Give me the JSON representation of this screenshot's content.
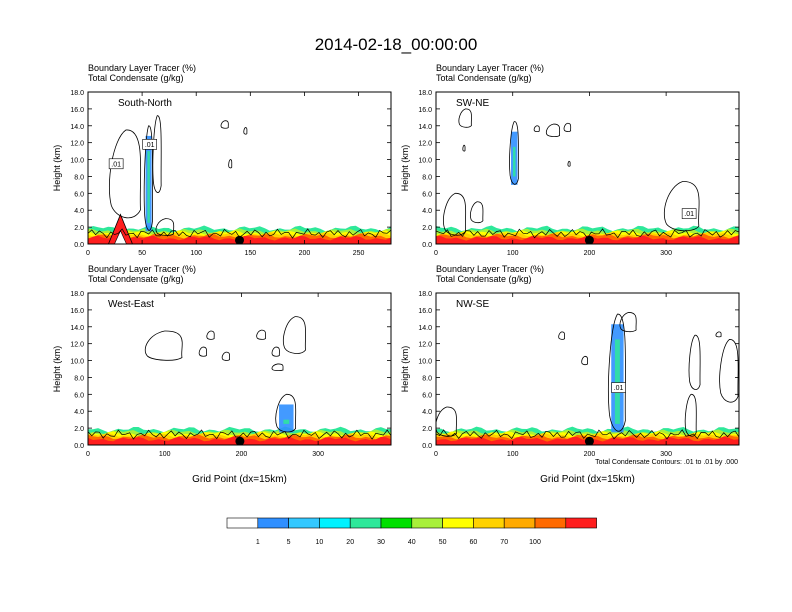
{
  "title": "2014-02-18_00:00:00",
  "colors": {
    "fill_levels": [
      "#ffffff",
      "#2f8fff",
      "#33c8ff",
      "#00f2ff",
      "#2ee89a",
      "#00e000",
      "#a8f03a",
      "#ffff00",
      "#ffd200",
      "#ffaa00",
      "#ff6a00",
      "#ff1e1e"
    ],
    "contour": "#000000"
  },
  "colorbar": {
    "labels": [
      "1",
      "5",
      "10",
      "20",
      "30",
      "40",
      "50",
      "60",
      "70",
      "100"
    ],
    "colors": [
      "#ffffff",
      "#2f8fff",
      "#33c8ff",
      "#00f2ff",
      "#2ee89a",
      "#00e000",
      "#a8f03a",
      "#ffff00",
      "#ffd200",
      "#ffaa00",
      "#ff6a00",
      "#ff1e1e"
    ]
  },
  "contour_note": "Total Condensate Contours: .01 to .01 by .000",
  "chart_data": [
    {
      "type": "heatmap",
      "panel_title": "South-North",
      "field_line1": "Boundary Layer Tracer   (%)",
      "field_line2": "Total Condensate   (g/kg)",
      "ylabel": "Height (km)",
      "xlabel": "",
      "xlim": [
        0,
        280
      ],
      "ylim": [
        0,
        18
      ],
      "xticks": [
        0,
        50,
        100,
        150,
        200,
        250
      ],
      "xtick_labels": [
        "0",
        "50",
        "100",
        "150",
        "200",
        "250"
      ],
      "yticks": [
        0,
        2,
        4,
        6,
        8,
        10,
        12,
        14,
        16,
        18
      ],
      "ytick_labels": [
        "0.0",
        "2.0",
        "4.0",
        "6.0",
        "8.0",
        "10.0",
        "12.0",
        "14.0",
        "16.0",
        "18.0"
      ],
      "marker_x": 140,
      "contour_labels": [
        {
          "x": 26,
          "y": 9.5,
          "text": ".01"
        },
        {
          "x": 57,
          "y": 11.8,
          "text": ".01"
        }
      ],
      "mountain_peak_x": 30,
      "mountain_peak_km": 3.5,
      "cloud_contours": [
        {
          "x0": 20,
          "x1": 50,
          "ybot": 3,
          "ytop": 13.5
        },
        {
          "x0": 52,
          "x1": 60,
          "ybot": 1.5,
          "ytop": 14
        },
        {
          "x0": 60,
          "x1": 68,
          "ybot": 6,
          "ytop": 15.2
        },
        {
          "x0": 123,
          "x1": 130,
          "ybot": 13.7,
          "ytop": 14.6
        },
        {
          "x0": 130,
          "x1": 133,
          "ybot": 9,
          "ytop": 10
        },
        {
          "x0": 144,
          "x1": 147,
          "ybot": 13,
          "ytop": 13.8
        },
        {
          "x0": 63,
          "x1": 80,
          "ybot": 1,
          "ytop": 3
        }
      ]
    },
    {
      "type": "heatmap",
      "panel_title": "SW-NE",
      "field_line1": "Boundary Layer Tracer   (%)",
      "field_line2": "Total Condensate   (g/kg)",
      "ylabel": "Height (km)",
      "xlabel": "",
      "xlim": [
        0,
        395
      ],
      "ylim": [
        0,
        18
      ],
      "xticks": [
        0,
        100,
        200,
        300
      ],
      "xtick_labels": [
        "0",
        "100",
        "200",
        "300"
      ],
      "yticks": [
        0,
        2,
        4,
        6,
        8,
        10,
        12,
        14,
        16,
        18
      ],
      "ytick_labels": [
        "0.0",
        "2.0",
        "4.0",
        "6.0",
        "8.0",
        "10.0",
        "12.0",
        "14.0",
        "16.0",
        "18.0"
      ],
      "marker_x": 200,
      "contour_labels": [
        {
          "x": 330,
          "y": 3.6,
          "text": ".01"
        }
      ],
      "mountain_peak_x": 0,
      "mountain_peak_km": 0,
      "cloud_contours": [
        {
          "x0": 30,
          "x1": 47,
          "ybot": 13.8,
          "ytop": 16
        },
        {
          "x0": 96,
          "x1": 108,
          "ybot": 7,
          "ytop": 14.5
        },
        {
          "x0": 128,
          "x1": 135,
          "ybot": 13.3,
          "ytop": 14
        },
        {
          "x0": 144,
          "x1": 162,
          "ybot": 12.7,
          "ytop": 14.2
        },
        {
          "x0": 167,
          "x1": 176,
          "ybot": 13.3,
          "ytop": 14.3
        },
        {
          "x0": 35,
          "x1": 38,
          "ybot": 11,
          "ytop": 11.7
        },
        {
          "x0": 172,
          "x1": 175,
          "ybot": 9.2,
          "ytop": 9.8
        },
        {
          "x0": 298,
          "x1": 345,
          "ybot": 1.5,
          "ytop": 7.4
        },
        {
          "x0": 10,
          "x1": 40,
          "ybot": 1,
          "ytop": 6
        },
        {
          "x0": 45,
          "x1": 62,
          "ybot": 2.5,
          "ytop": 5
        }
      ]
    },
    {
      "type": "heatmap",
      "panel_title": "West-East",
      "field_line1": "Boundary Layer Tracer   (%)",
      "field_line2": "Total Condensate   (g/kg)",
      "ylabel": "Height (km)",
      "xlabel": "Grid Point (dx=15km)",
      "xlim": [
        0,
        395
      ],
      "ylim": [
        0,
        18
      ],
      "xticks": [
        0,
        100,
        200,
        300
      ],
      "xtick_labels": [
        "0",
        "100",
        "200",
        "300"
      ],
      "yticks": [
        0,
        2,
        4,
        6,
        8,
        10,
        12,
        14,
        16,
        18
      ],
      "ytick_labels": [
        "0.0",
        "2.0",
        "4.0",
        "6.0",
        "8.0",
        "10.0",
        "12.0",
        "14.0",
        "16.0",
        "18.0"
      ],
      "marker_x": 198,
      "contour_labels": [],
      "mountain_peak_x": 0,
      "mountain_peak_km": 0,
      "cloud_contours": [
        {
          "x0": 75,
          "x1": 125,
          "ybot": 10,
          "ytop": 13.5
        },
        {
          "x0": 145,
          "x1": 155,
          "ybot": 10.5,
          "ytop": 11.6
        },
        {
          "x0": 155,
          "x1": 165,
          "ybot": 12.5,
          "ytop": 13.5
        },
        {
          "x0": 175,
          "x1": 185,
          "ybot": 10,
          "ytop": 11
        },
        {
          "x0": 220,
          "x1": 232,
          "ybot": 12.5,
          "ytop": 13.6
        },
        {
          "x0": 240,
          "x1": 250,
          "ybot": 10.5,
          "ytop": 11.6
        },
        {
          "x0": 255,
          "x1": 285,
          "ybot": 10.8,
          "ytop": 15.2
        },
        {
          "x0": 240,
          "x1": 255,
          "ybot": 8.8,
          "ytop": 9.6
        },
        {
          "x0": 245,
          "x1": 272,
          "ybot": 1.5,
          "ytop": 6
        }
      ]
    },
    {
      "type": "heatmap",
      "panel_title": "NW-SE",
      "field_line1": "Boundary Layer Tracer   (%)",
      "field_line2": "Total Condensate   (g/kg)",
      "ylabel": "Height (km)",
      "xlabel": "Grid Point (dx=15km)",
      "xlim": [
        0,
        395
      ],
      "ylim": [
        0,
        18
      ],
      "xticks": [
        0,
        100,
        200,
        300
      ],
      "xtick_labels": [
        "0",
        "100",
        "200",
        "300"
      ],
      "yticks": [
        0,
        2,
        4,
        6,
        8,
        10,
        12,
        14,
        16,
        18
      ],
      "ytick_labels": [
        "0.0",
        "2.0",
        "4.0",
        "6.0",
        "8.0",
        "10.0",
        "12.0",
        "14.0",
        "16.0",
        "18.0"
      ],
      "marker_x": 200,
      "contour_labels": [
        {
          "x": 238,
          "y": 6.8,
          "text": ".01"
        }
      ],
      "mountain_peak_x": 0,
      "mountain_peak_km": 0,
      "cloud_contours": [
        {
          "x0": 225,
          "x1": 248,
          "ybot": 1.5,
          "ytop": 15.5
        },
        {
          "x0": 240,
          "x1": 262,
          "ybot": 13.4,
          "ytop": 15.7
        },
        {
          "x0": 160,
          "x1": 168,
          "ybot": 12.5,
          "ytop": 13.4
        },
        {
          "x0": 190,
          "x1": 198,
          "ybot": 9.5,
          "ytop": 10.5
        },
        {
          "x0": 330,
          "x1": 345,
          "ybot": 6.5,
          "ytop": 13
        },
        {
          "x0": 370,
          "x1": 395,
          "ybot": 5,
          "ytop": 12.5
        },
        {
          "x0": 325,
          "x1": 340,
          "ybot": 1,
          "ytop": 6
        },
        {
          "x0": 0,
          "x1": 28,
          "ybot": 1,
          "ytop": 4.5
        },
        {
          "x0": 365,
          "x1": 372,
          "ybot": 12.8,
          "ytop": 13.4
        }
      ]
    }
  ]
}
